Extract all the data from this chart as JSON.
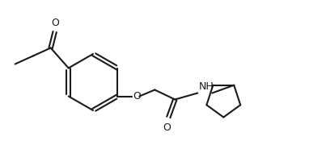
{
  "bg_color": "#ffffff",
  "line_color": "#1a1a1a",
  "line_width": 1.5,
  "fig_width": 3.82,
  "fig_height": 1.8,
  "dpi": 100,
  "xlim": [
    0,
    382
  ],
  "ylim": [
    0,
    180
  ]
}
